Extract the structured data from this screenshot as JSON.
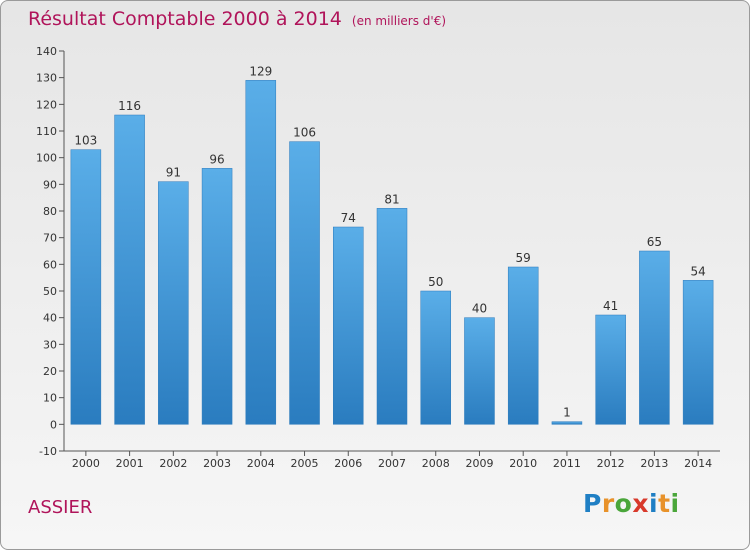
{
  "title": "Résultat Comptable 2000 à 2014",
  "subtitle": "(en milliers d'€)",
  "commune": "ASSIER",
  "brand": {
    "logo_text": "Proxiti"
  },
  "colors": {
    "title": "#b0145a",
    "bar_top": "#5aaee8",
    "bar_bottom": "#2a7cbf"
  },
  "chart_data": {
    "type": "bar",
    "title": "Résultat Comptable 2000 à 2014",
    "subtitle": "(en milliers d'€)",
    "xlabel": "",
    "ylabel": "",
    "categories": [
      "2000",
      "2001",
      "2002",
      "2003",
      "2004",
      "2005",
      "2006",
      "2007",
      "2008",
      "2009",
      "2010",
      "2011",
      "2012",
      "2013",
      "2014"
    ],
    "values": [
      103,
      116,
      91,
      96,
      129,
      106,
      74,
      81,
      50,
      40,
      59,
      1,
      41,
      65,
      54
    ],
    "ylim": [
      -10,
      140
    ],
    "yticks": [
      -10,
      0,
      10,
      20,
      30,
      40,
      50,
      60,
      70,
      80,
      90,
      100,
      110,
      120,
      130,
      140
    ],
    "grid": false,
    "data_labels": true
  }
}
